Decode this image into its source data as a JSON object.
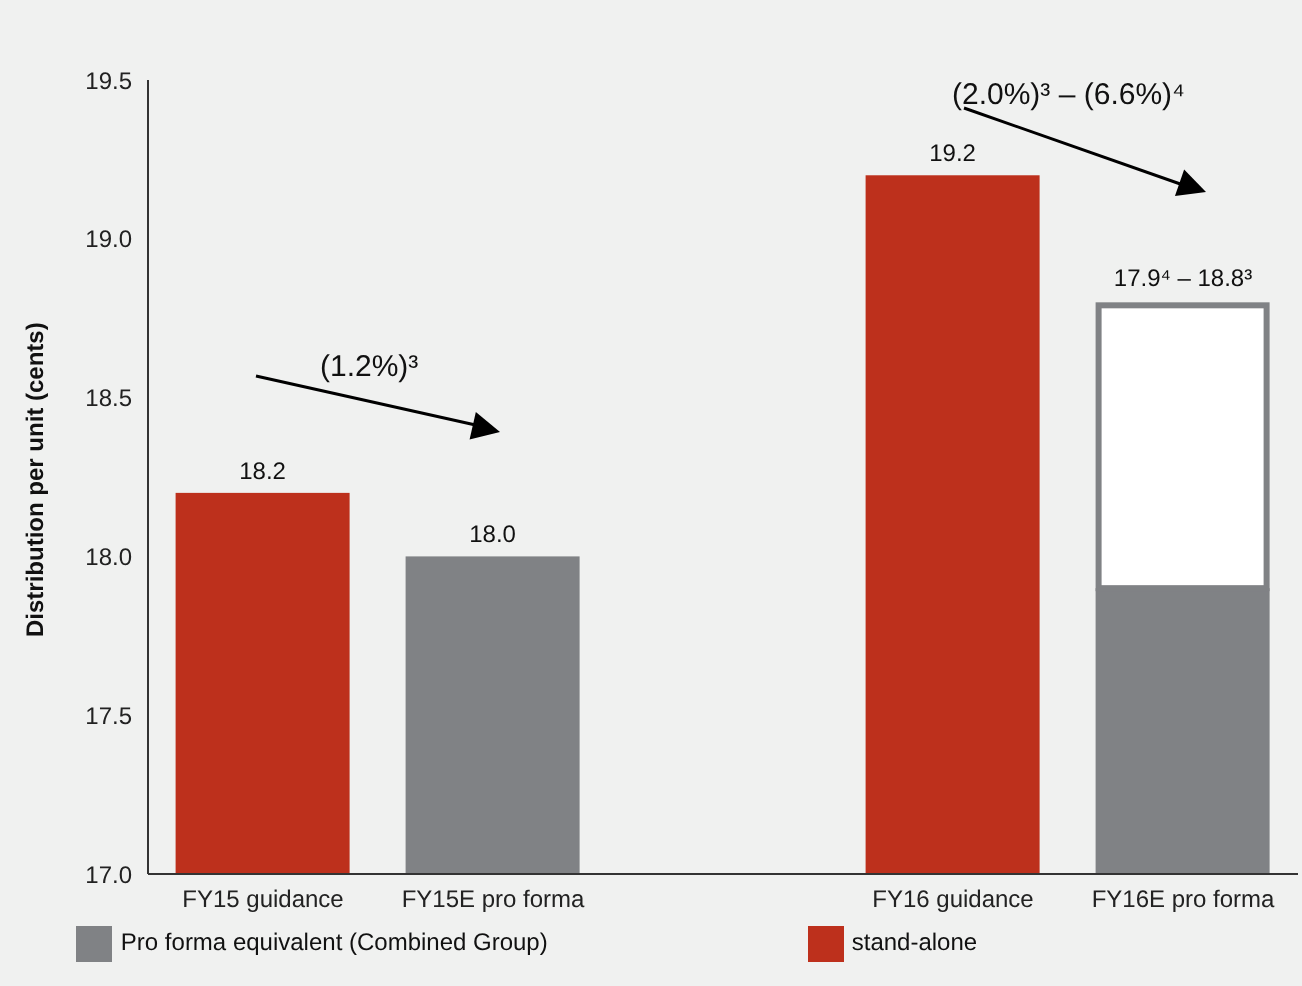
{
  "chart_data": {
    "type": "bar",
    "ylabel": "Distribution per unit (cents)",
    "categories": [
      "FY15 guidance",
      "FY15E pro forma",
      null,
      "FY16 guidance",
      "FY16E pro forma"
    ],
    "series": [
      {
        "name": "stand-alone",
        "color": "#bd301c",
        "values": [
          18.2,
          null,
          null,
          19.2,
          null
        ],
        "value_labels": [
          "18.2",
          null,
          null,
          "19.2",
          null
        ]
      },
      {
        "name": "Pro forma equivalent (Combined Group)",
        "color": "#808285",
        "values": [
          null,
          18.0,
          null,
          null,
          17.9
        ],
        "value_labels": [
          null,
          "18.0",
          null,
          null,
          null
        ]
      },
      {
        "color": "#ffffff",
        "values": [
          null,
          null,
          null,
          null,
          0.9
        ],
        "base": [
          null,
          null,
          null,
          null,
          17.9
        ]
      }
    ],
    "ylim": [
      17,
      19.5
    ],
    "yticks": [
      {
        "value": 17,
        "label": "17.0"
      },
      {
        "value": 17.5,
        "label": "17.5"
      },
      {
        "value": 18,
        "label": "18.0"
      },
      {
        "value": 18.5,
        "label": "18.5"
      },
      {
        "value": 19,
        "label": "19.0"
      },
      {
        "value": 19.5,
        "label": "19.5"
      }
    ],
    "grid": false,
    "legend": "bottom",
    "annotations": [
      "(1.2%)³",
      "(2.0%)³ – (6.6%)⁴",
      {
        "text": "17.9⁴ – 18.8³",
        "x": "FY16E pro forma",
        "y": 18.8
      }
    ]
  }
}
